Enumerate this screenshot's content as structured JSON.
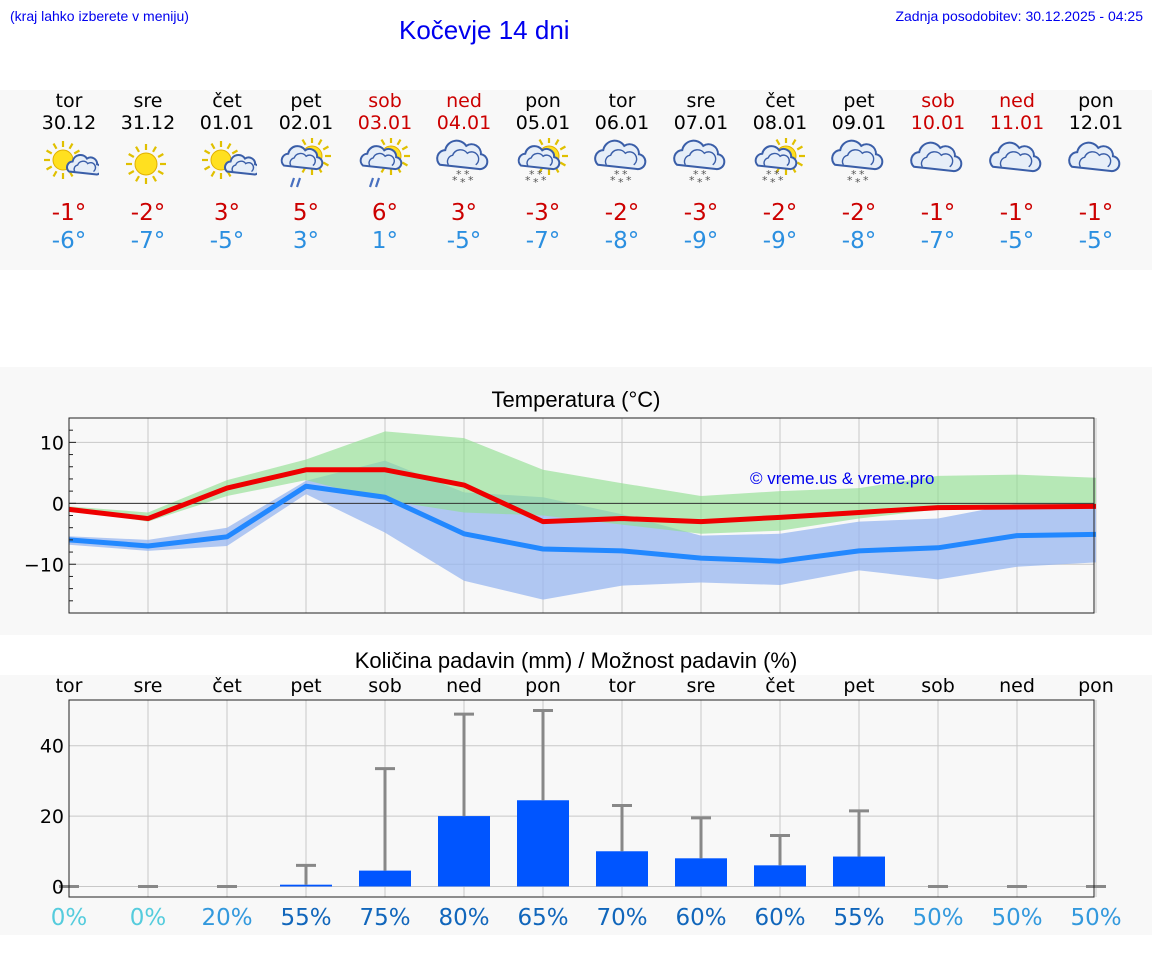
{
  "header": {
    "left_note": "(kraj lahko izberete v meniju)",
    "title": "Kočevje 14 dni",
    "updated": "Zadnja posodobitev: 30.12.2025 - 04:25"
  },
  "days": [
    {
      "name": "tor",
      "date": "30.12",
      "weekend": false,
      "icon": "sun-cloud-icon",
      "tmax": "-1°",
      "tmin": "-6°"
    },
    {
      "name": "sre",
      "date": "31.12",
      "weekend": false,
      "icon": "sun-icon",
      "tmax": "-2°",
      "tmin": "-7°"
    },
    {
      "name": "čet",
      "date": "01.01",
      "weekend": false,
      "icon": "sun-cloud-icon",
      "tmax": "3°",
      "tmin": "-5°"
    },
    {
      "name": "pet",
      "date": "02.01",
      "weekend": false,
      "icon": "sun-cloud-rain-icon",
      "tmax": "5°",
      "tmin": "3°"
    },
    {
      "name": "sob",
      "date": "03.01",
      "weekend": true,
      "icon": "sun-cloud-rain-icon",
      "tmax": "6°",
      "tmin": "1°"
    },
    {
      "name": "ned",
      "date": "04.01",
      "weekend": true,
      "icon": "cloud-snow-icon",
      "tmax": "3°",
      "tmin": "-5°"
    },
    {
      "name": "pon",
      "date": "05.01",
      "weekend": false,
      "icon": "sun-cloud-snow-icon",
      "tmax": "-3°",
      "tmin": "-7°"
    },
    {
      "name": "tor",
      "date": "06.01",
      "weekend": false,
      "icon": "cloud-snow-icon",
      "tmax": "-2°",
      "tmin": "-8°"
    },
    {
      "name": "sre",
      "date": "07.01",
      "weekend": false,
      "icon": "cloud-snow-icon",
      "tmax": "-3°",
      "tmin": "-9°"
    },
    {
      "name": "čet",
      "date": "08.01",
      "weekend": false,
      "icon": "sun-cloud-snow-icon",
      "tmax": "-2°",
      "tmin": "-9°"
    },
    {
      "name": "pet",
      "date": "09.01",
      "weekend": false,
      "icon": "cloud-snow-icon",
      "tmax": "-2°",
      "tmin": "-8°"
    },
    {
      "name": "sob",
      "date": "10.01",
      "weekend": true,
      "icon": "cloud-icon",
      "tmax": "-1°",
      "tmin": "-7°"
    },
    {
      "name": "ned",
      "date": "11.01",
      "weekend": true,
      "icon": "cloud-icon",
      "tmax": "-1°",
      "tmin": "-5°"
    },
    {
      "name": "pon",
      "date": "12.01",
      "weekend": false,
      "icon": "cloud-icon",
      "tmax": "-1°",
      "tmin": "-5°"
    }
  ],
  "colors": {
    "max_line": "#ee0000",
    "min_line": "#2288ff",
    "max_band": "#8ede8e",
    "min_band": "#94b4f0",
    "overlap_band": "#6cb4a8",
    "bar": "#0055ff",
    "whisker": "#888888"
  },
  "chart_data": [
    {
      "type": "line",
      "title": "Temperatura (°C)",
      "x": [
        0,
        1,
        2,
        3,
        4,
        5,
        6,
        7,
        8,
        9,
        10,
        11,
        12,
        13
      ],
      "ylim": [
        -18,
        14
      ],
      "yticks": [
        10,
        0,
        -10
      ],
      "ytick_labels": [
        "10",
        "0",
        "−10"
      ],
      "annotation": "© vreme.us & vreme.pro",
      "series": [
        {
          "name": "max",
          "values": [
            -1,
            -2.5,
            2.5,
            5.5,
            5.5,
            3,
            -3,
            -2.5,
            -3,
            -2.3,
            -1.5,
            -0.7,
            -0.6,
            -0.5
          ]
        },
        {
          "name": "min",
          "values": [
            -6,
            -7,
            -5.5,
            2.8,
            1,
            -5,
            -7.5,
            -7.8,
            -9,
            -9.5,
            -7.8,
            -7.3,
            -5.3,
            -5.1
          ]
        }
      ],
      "bands": [
        {
          "name": "max_range",
          "low": [
            -1,
            -3,
            1.2,
            3.8,
            0.5,
            -1.5,
            -2,
            -3.5,
            -5,
            -4.5,
            -2.5,
            -1,
            -0.3,
            -0.3
          ],
          "high": [
            -0.5,
            -1.5,
            3.8,
            7.2,
            11.8,
            10.7,
            5.5,
            3.3,
            1.2,
            2,
            2.5,
            4.5,
            4.7,
            4.2
          ]
        },
        {
          "name": "min_range",
          "low": [
            -6.8,
            -7.8,
            -7,
            1.5,
            -4.8,
            -12.7,
            -15.8,
            -13.5,
            -13,
            -13.4,
            -11,
            -12.5,
            -10.4,
            -9.7
          ],
          "high": [
            -5.4,
            -6,
            -4,
            3.7,
            7,
            1.8,
            1,
            -1.8,
            -5.3,
            -5,
            -3,
            -2.5,
            0,
            0
          ]
        }
      ]
    },
    {
      "type": "bar",
      "title": "Količina padavin (mm) / Možnost padavin (%)",
      "categories": [
        "tor",
        "sre",
        "čet",
        "pet",
        "sob",
        "ned",
        "pon",
        "tor",
        "sre",
        "čet",
        "pet",
        "sob",
        "ned",
        "pon"
      ],
      "values": [
        0,
        0,
        0,
        0.5,
        4.5,
        20,
        24.5,
        10,
        8,
        6,
        8.5,
        0,
        0,
        0
      ],
      "error_high": [
        0,
        0,
        0,
        6,
        33.5,
        49,
        50,
        23,
        19.5,
        14.5,
        21.5,
        0,
        0,
        0
      ],
      "ylim": [
        -3,
        53
      ],
      "yticks": [
        40,
        20,
        0
      ],
      "ytick_labels": [
        "40",
        "20",
        "0"
      ],
      "probability": [
        "0%",
        "0%",
        "20%",
        "55%",
        "75%",
        "80%",
        "65%",
        "70%",
        "60%",
        "60%",
        "55%",
        "50%",
        "50%",
        "50%"
      ],
      "probability_values": [
        0,
        0,
        20,
        55,
        75,
        80,
        65,
        70,
        60,
        60,
        55,
        50,
        50,
        50
      ]
    }
  ]
}
